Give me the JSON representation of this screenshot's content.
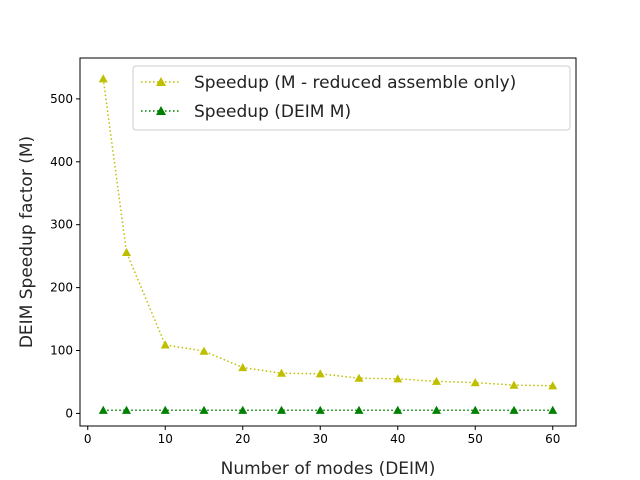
{
  "chart_data": {
    "type": "line",
    "title": "",
    "xlabel": "Number of modes (DEIM)",
    "ylabel": "DEIM Speedup factor (M)",
    "xlim": [
      -1,
      63
    ],
    "ylim": [
      -20,
      565
    ],
    "xticks": [
      0,
      10,
      20,
      30,
      40,
      50,
      60
    ],
    "yticks": [
      0,
      100,
      200,
      300,
      400,
      500
    ],
    "grid": false,
    "legend_position": "upper right",
    "x": [
      2,
      5,
      10,
      15,
      20,
      25,
      30,
      35,
      40,
      45,
      50,
      55,
      60
    ],
    "series": [
      {
        "name": "Speedup (M - reduced assemble only)",
        "color": "#bfbf00",
        "marker": "triangle",
        "linestyle": "dotted",
        "values": [
          532,
          256,
          109,
          99,
          73,
          64,
          63,
          56,
          55,
          51,
          49,
          45,
          44
        ]
      },
      {
        "name": "Speedup (DEIM M)",
        "color": "#008000",
        "marker": "triangle",
        "linestyle": "dotted",
        "values": [
          5,
          5,
          5,
          5,
          5,
          5,
          5,
          5,
          5,
          5,
          5,
          5,
          5
        ]
      }
    ]
  }
}
